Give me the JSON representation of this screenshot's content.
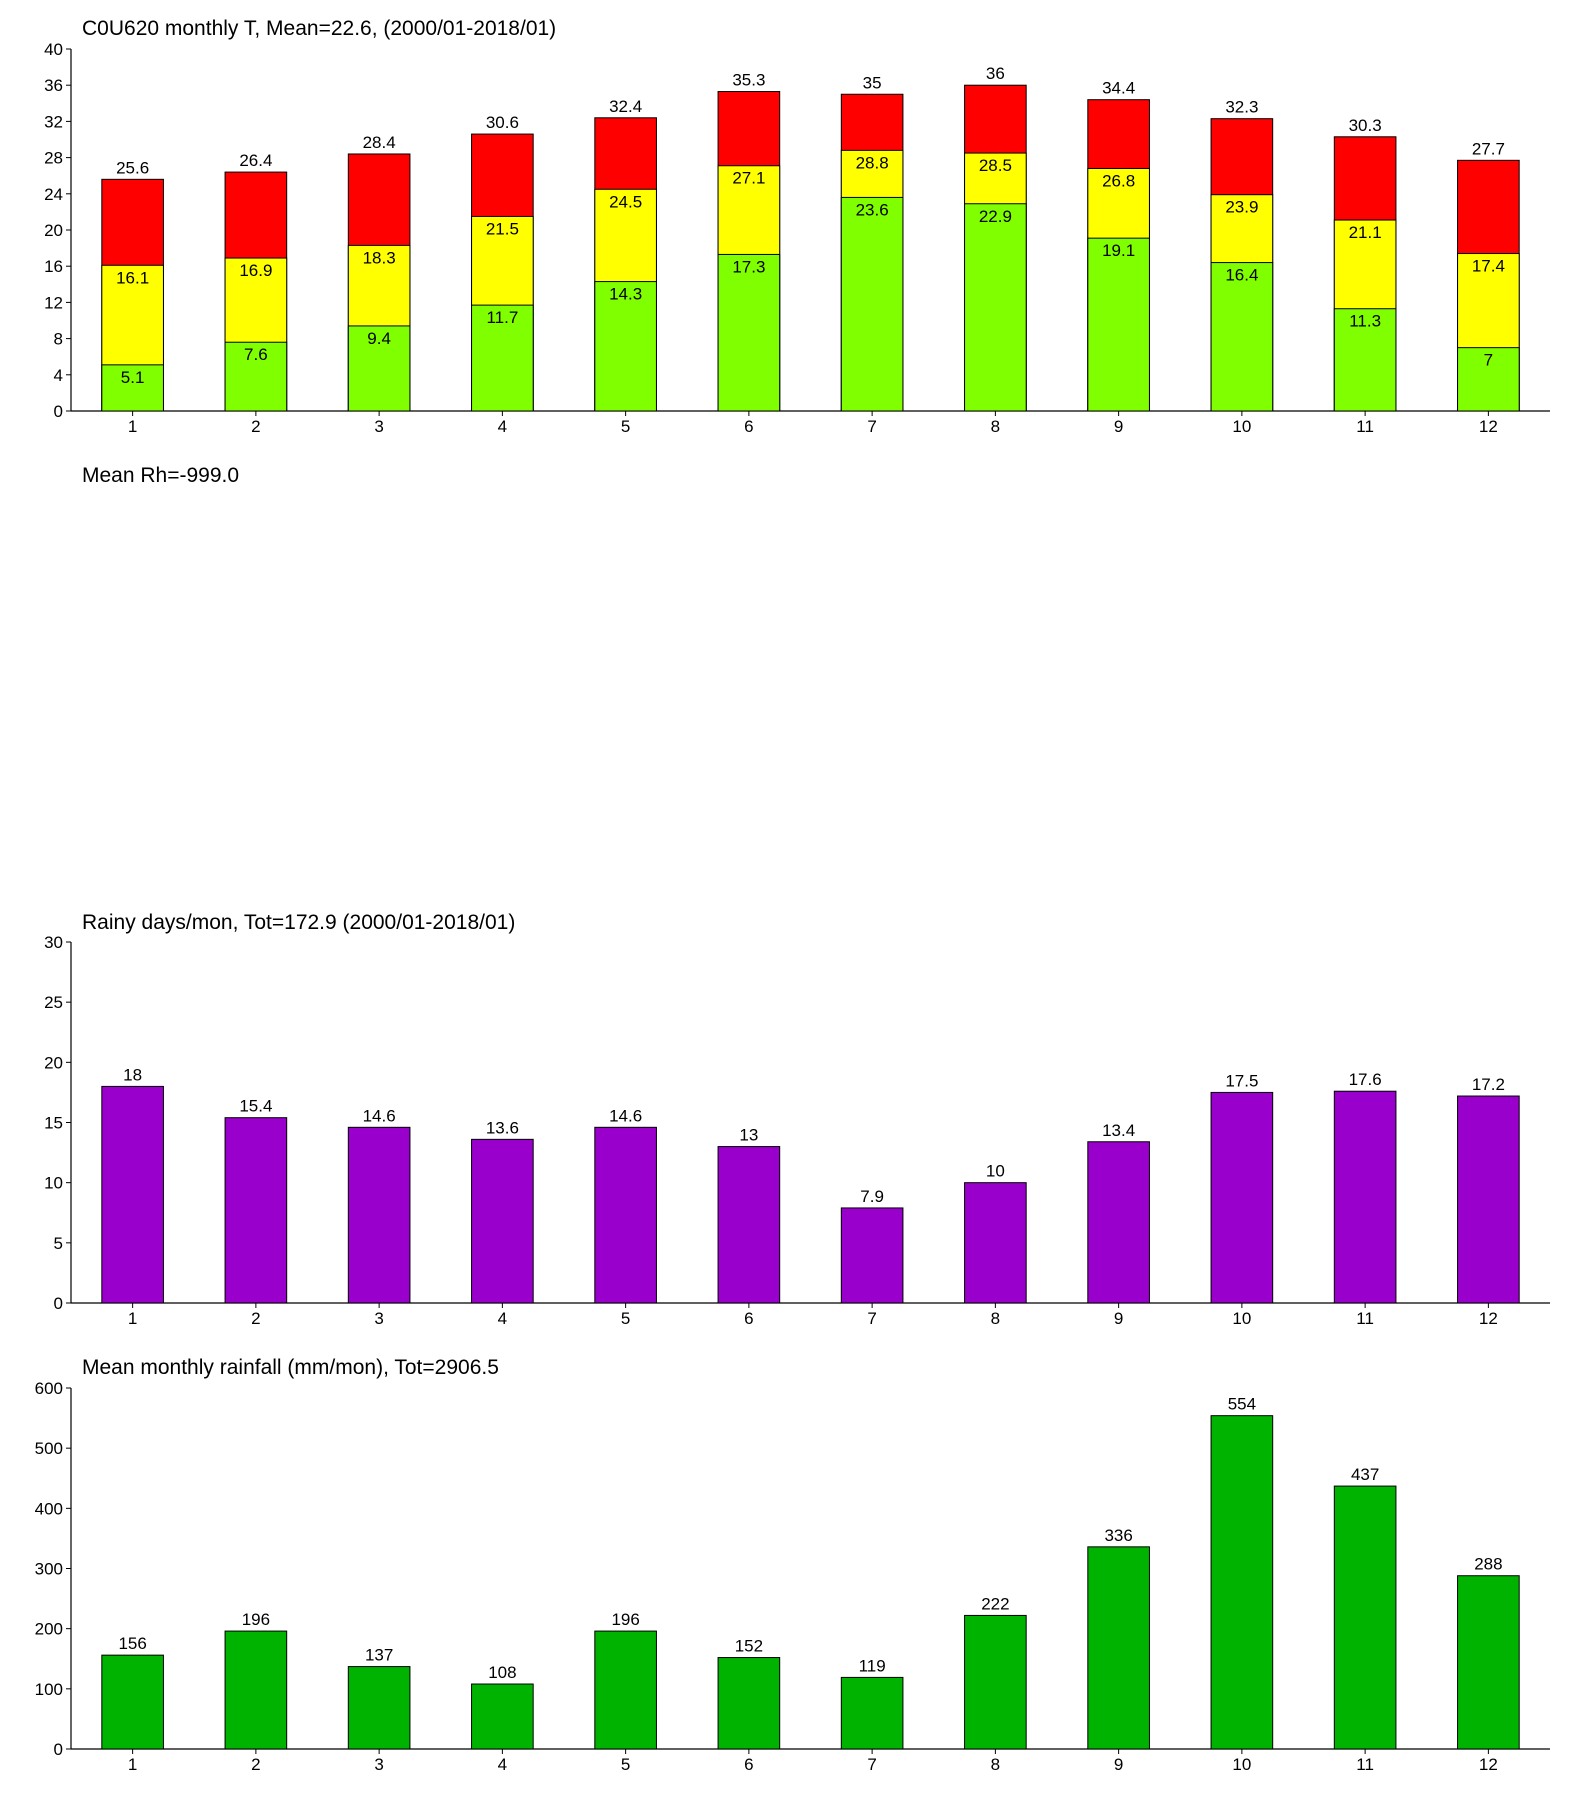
{
  "chart_data": [
    {
      "type": "bar",
      "title": "C0U620 monthly T, Mean=22.6, (2000/01-2018/01)",
      "categories": [
        "1",
        "2",
        "3",
        "4",
        "5",
        "6",
        "7",
        "8",
        "9",
        "10",
        "11",
        "12"
      ],
      "series": [
        {
          "color": "#80ff00",
          "values": [
            5.1,
            7.6,
            9.4,
            11.7,
            14.3,
            17.3,
            23.6,
            22.9,
            19.1,
            16.4,
            11.3,
            7
          ]
        },
        {
          "color": "#ffff00",
          "values": [
            16.1,
            16.9,
            18.3,
            21.5,
            24.5,
            27.1,
            28.8,
            28.5,
            26.8,
            23.9,
            21.1,
            17.4
          ]
        },
        {
          "color": "#ff0000",
          "values": [
            25.6,
            26.4,
            28.4,
            30.6,
            32.4,
            35.3,
            35,
            36,
            34.4,
            32.3,
            30.3,
            27.7
          ]
        }
      ],
      "ylim": [
        0,
        40
      ],
      "yticks": [
        0,
        4,
        8,
        12,
        16,
        20,
        24,
        28,
        32,
        36,
        40
      ]
    },
    {
      "title": "Mean Rh=-999.0"
    },
    {
      "type": "bar",
      "title": "Rainy days/mon, Tot=172.9 (2000/01-2018/01)",
      "categories": [
        "1",
        "2",
        "3",
        "4",
        "5",
        "6",
        "7",
        "8",
        "9",
        "10",
        "11",
        "12"
      ],
      "series": [
        {
          "color": "#9900cc",
          "values": [
            18,
            15.4,
            14.6,
            13.6,
            14.6,
            13,
            7.9,
            10,
            13.4,
            17.5,
            17.6,
            17.2
          ]
        }
      ],
      "ylim": [
        0,
        30
      ],
      "yticks": [
        0,
        5,
        10,
        15,
        20,
        25,
        30
      ]
    },
    {
      "type": "bar",
      "title": "Mean monthly rainfall (mm/mon), Tot=2906.5",
      "categories": [
        "1",
        "2",
        "3",
        "4",
        "5",
        "6",
        "7",
        "8",
        "9",
        "10",
        "11",
        "12"
      ],
      "series": [
        {
          "color": "#00b300",
          "values": [
            156,
            196,
            137,
            108,
            196,
            152,
            119,
            222,
            336,
            554,
            437,
            288
          ]
        }
      ],
      "ylim": [
        0,
        600
      ],
      "yticks": [
        0,
        100,
        200,
        300,
        400,
        500,
        600
      ]
    }
  ]
}
